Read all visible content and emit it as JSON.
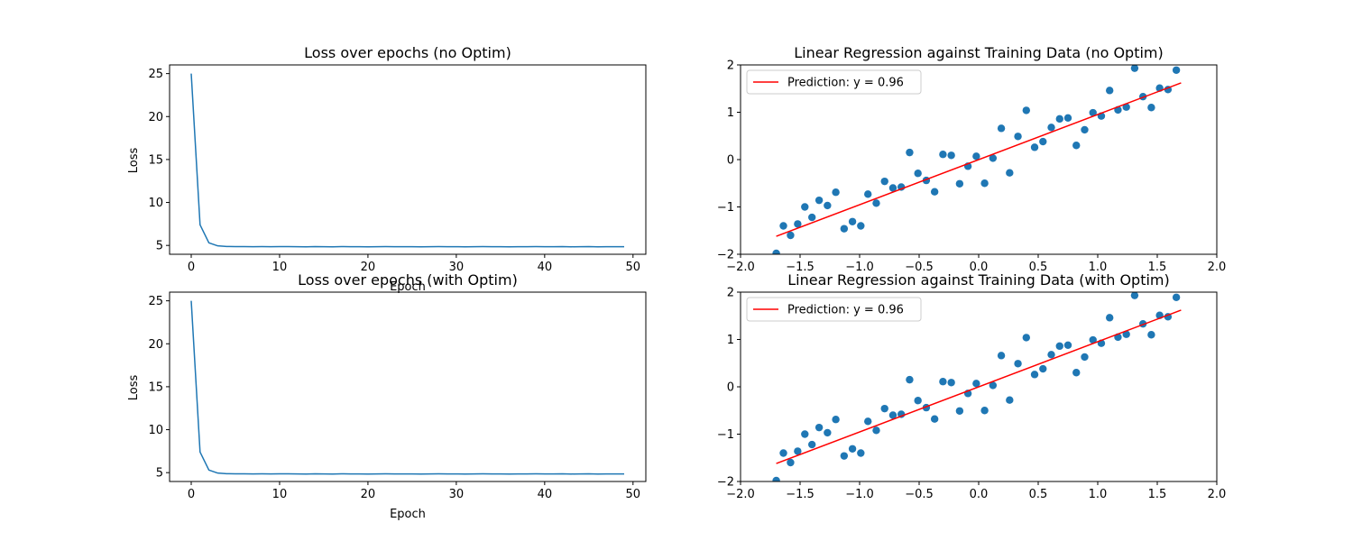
{
  "chart_data": [
    {
      "type": "line",
      "title": "Loss over epochs (no Optim)",
      "xlabel": "Epoch",
      "ylabel": "Loss",
      "xlim": [
        -2.45,
        51.45
      ],
      "ylim": [
        3.97,
        26.01
      ],
      "xticks": [
        0,
        10,
        20,
        30,
        40,
        50
      ],
      "yticks": [
        5,
        10,
        15,
        20,
        25
      ],
      "grid": false,
      "series": [
        {
          "color": "#1f77b4",
          "x": [
            0,
            1,
            2,
            3,
            4,
            5,
            6,
            7,
            8,
            9,
            10,
            11,
            12,
            13,
            14,
            15,
            16,
            17,
            18,
            19,
            20,
            21,
            22,
            23,
            24,
            25,
            26,
            27,
            28,
            29,
            30,
            31,
            32,
            33,
            34,
            35,
            36,
            37,
            38,
            39,
            40,
            41,
            42,
            43,
            44,
            45,
            46,
            47,
            48,
            49
          ],
          "y": [
            25.0,
            7.4,
            5.3,
            4.95,
            4.88,
            4.86,
            4.86,
            4.85,
            4.86,
            4.85,
            4.86,
            4.86,
            4.85,
            4.84,
            4.86,
            4.85,
            4.84,
            4.86,
            4.85,
            4.85,
            4.84,
            4.85,
            4.86,
            4.85,
            4.85,
            4.85,
            4.84,
            4.85,
            4.86,
            4.85,
            4.85,
            4.84,
            4.85,
            4.86,
            4.85,
            4.85,
            4.84,
            4.85,
            4.85,
            4.86,
            4.85,
            4.85,
            4.86,
            4.84,
            4.85,
            4.86,
            4.83,
            4.85,
            4.85,
            4.85
          ]
        }
      ]
    },
    {
      "type": "scatter",
      "title": "Linear Regression against Training Data (no Optim)",
      "xlim": [
        -2,
        2
      ],
      "ylim": [
        -2,
        2
      ],
      "xticks": [
        -2.0,
        -1.5,
        -1.0,
        -0.5,
        0.0,
        0.5,
        1.0,
        1.5,
        2.0
      ],
      "yticks": [
        -2,
        -1,
        0,
        1,
        2
      ],
      "grid": false,
      "legend_position": "top-left",
      "legend": [
        "Prediction: y =  0.96"
      ],
      "points_color": "#1f77b4",
      "line_color": "#ff0000",
      "line": {
        "x": [
          -1.7,
          1.7
        ],
        "y": [
          -1.62,
          1.62
        ]
      },
      "points": [
        [
          -1.7,
          -1.98
        ],
        [
          -1.64,
          -1.4
        ],
        [
          -1.58,
          -1.6
        ],
        [
          -1.52,
          -1.36
        ],
        [
          -1.46,
          -1.0
        ],
        [
          -1.4,
          -1.22
        ],
        [
          -1.34,
          -0.86
        ],
        [
          -1.27,
          -0.97
        ],
        [
          -1.2,
          -0.69
        ],
        [
          -1.13,
          -1.46
        ],
        [
          -1.06,
          -1.31
        ],
        [
          -0.99,
          -1.4
        ],
        [
          -0.93,
          -0.73
        ],
        [
          -0.86,
          -0.92
        ],
        [
          -0.79,
          -0.46
        ],
        [
          -0.72,
          -0.6
        ],
        [
          -0.65,
          -0.58
        ],
        [
          -0.58,
          0.15
        ],
        [
          -0.51,
          -0.29
        ],
        [
          -0.44,
          -0.44
        ],
        [
          -0.37,
          -0.68
        ],
        [
          -0.3,
          0.11
        ],
        [
          -0.23,
          0.09
        ],
        [
          -0.16,
          -0.51
        ],
        [
          -0.09,
          -0.14
        ],
        [
          -0.02,
          0.07
        ],
        [
          0.05,
          -0.5
        ],
        [
          0.12,
          0.03
        ],
        [
          0.19,
          0.66
        ],
        [
          0.26,
          -0.28
        ],
        [
          0.33,
          0.49
        ],
        [
          0.4,
          1.04
        ],
        [
          0.47,
          0.26
        ],
        [
          0.54,
          0.38
        ],
        [
          0.61,
          0.68
        ],
        [
          0.68,
          0.86
        ],
        [
          0.75,
          0.88
        ],
        [
          0.82,
          0.3
        ],
        [
          0.89,
          0.63
        ],
        [
          0.96,
          0.99
        ],
        [
          1.03,
          0.92
        ],
        [
          1.1,
          1.46
        ],
        [
          1.17,
          1.05
        ],
        [
          1.24,
          1.11
        ],
        [
          1.31,
          1.93
        ],
        [
          1.38,
          1.33
        ],
        [
          1.45,
          1.1
        ],
        [
          1.52,
          1.51
        ],
        [
          1.59,
          1.48
        ],
        [
          1.66,
          1.89
        ]
      ]
    },
    {
      "type": "line",
      "title": "Loss over epochs (with Optim)",
      "xlabel": "Epoch",
      "ylabel": "Loss",
      "xlim": [
        -2.45,
        51.45
      ],
      "ylim": [
        3.97,
        26.01
      ],
      "xticks": [
        0,
        10,
        20,
        30,
        40,
        50
      ],
      "yticks": [
        5,
        10,
        15,
        20,
        25
      ],
      "grid": false,
      "series": [
        {
          "color": "#1f77b4",
          "x": [
            0,
            1,
            2,
            3,
            4,
            5,
            6,
            7,
            8,
            9,
            10,
            11,
            12,
            13,
            14,
            15,
            16,
            17,
            18,
            19,
            20,
            21,
            22,
            23,
            24,
            25,
            26,
            27,
            28,
            29,
            30,
            31,
            32,
            33,
            34,
            35,
            36,
            37,
            38,
            39,
            40,
            41,
            42,
            43,
            44,
            45,
            46,
            47,
            48,
            49
          ],
          "y": [
            25.0,
            7.4,
            5.3,
            4.95,
            4.88,
            4.86,
            4.86,
            4.85,
            4.86,
            4.85,
            4.86,
            4.86,
            4.85,
            4.84,
            4.86,
            4.85,
            4.84,
            4.86,
            4.85,
            4.85,
            4.84,
            4.85,
            4.86,
            4.85,
            4.85,
            4.85,
            4.84,
            4.85,
            4.86,
            4.85,
            4.85,
            4.84,
            4.85,
            4.86,
            4.85,
            4.85,
            4.84,
            4.85,
            4.85,
            4.86,
            4.85,
            4.85,
            4.86,
            4.84,
            4.85,
            4.86,
            4.83,
            4.85,
            4.85,
            4.85
          ]
        }
      ]
    },
    {
      "type": "scatter",
      "title": "Linear Regression against Training Data (with Optim)",
      "xlim": [
        -2,
        2
      ],
      "ylim": [
        -2,
        2
      ],
      "xticks": [
        -2.0,
        -1.5,
        -1.0,
        -0.5,
        0.0,
        0.5,
        1.0,
        1.5,
        2.0
      ],
      "yticks": [
        -2,
        -1,
        0,
        1,
        2
      ],
      "grid": false,
      "legend_position": "top-left",
      "legend": [
        "Prediction: y =  0.96"
      ],
      "points_color": "#1f77b4",
      "line_color": "#ff0000",
      "line": {
        "x": [
          -1.7,
          1.7
        ],
        "y": [
          -1.62,
          1.62
        ]
      },
      "points": [
        [
          -1.7,
          -1.98
        ],
        [
          -1.64,
          -1.4
        ],
        [
          -1.58,
          -1.6
        ],
        [
          -1.52,
          -1.36
        ],
        [
          -1.46,
          -1.0
        ],
        [
          -1.4,
          -1.22
        ],
        [
          -1.34,
          -0.86
        ],
        [
          -1.27,
          -0.97
        ],
        [
          -1.2,
          -0.69
        ],
        [
          -1.13,
          -1.46
        ],
        [
          -1.06,
          -1.31
        ],
        [
          -0.99,
          -1.4
        ],
        [
          -0.93,
          -0.73
        ],
        [
          -0.86,
          -0.92
        ],
        [
          -0.79,
          -0.46
        ],
        [
          -0.72,
          -0.6
        ],
        [
          -0.65,
          -0.58
        ],
        [
          -0.58,
          0.15
        ],
        [
          -0.51,
          -0.29
        ],
        [
          -0.44,
          -0.44
        ],
        [
          -0.37,
          -0.68
        ],
        [
          -0.3,
          0.11
        ],
        [
          -0.23,
          0.09
        ],
        [
          -0.16,
          -0.51
        ],
        [
          -0.09,
          -0.14
        ],
        [
          -0.02,
          0.07
        ],
        [
          0.05,
          -0.5
        ],
        [
          0.12,
          0.03
        ],
        [
          0.19,
          0.66
        ],
        [
          0.26,
          -0.28
        ],
        [
          0.33,
          0.49
        ],
        [
          0.4,
          1.04
        ],
        [
          0.47,
          0.26
        ],
        [
          0.54,
          0.38
        ],
        [
          0.61,
          0.68
        ],
        [
          0.68,
          0.86
        ],
        [
          0.75,
          0.88
        ],
        [
          0.82,
          0.3
        ],
        [
          0.89,
          0.63
        ],
        [
          0.96,
          0.99
        ],
        [
          1.03,
          0.92
        ],
        [
          1.1,
          1.46
        ],
        [
          1.17,
          1.05
        ],
        [
          1.24,
          1.11
        ],
        [
          1.31,
          1.93
        ],
        [
          1.38,
          1.33
        ],
        [
          1.45,
          1.1
        ],
        [
          1.52,
          1.51
        ],
        [
          1.59,
          1.48
        ],
        [
          1.66,
          1.89
        ]
      ]
    }
  ]
}
